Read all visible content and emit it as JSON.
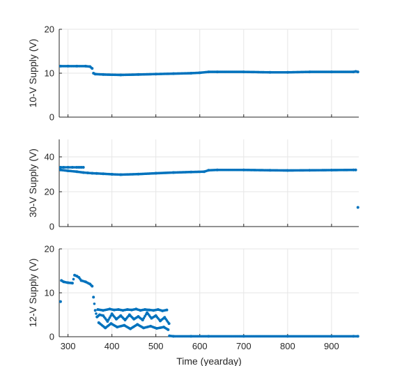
{
  "chart_data": [
    {
      "type": "scatter",
      "title": "",
      "xlabel": "",
      "ylabel": "10-V Supply (V)",
      "xlim": [
        280,
        962
      ],
      "ylim": [
        0,
        20
      ],
      "yticks": [
        0,
        10,
        20
      ],
      "xticks": [
        300,
        400,
        500,
        600,
        700,
        800,
        900
      ],
      "xtick_labels_shown": false,
      "grid": true,
      "marker_color": "#0072BD",
      "series": [
        {
          "x": [
            283,
            300,
            320,
            340,
            350,
            355,
            358,
            362,
            380,
            420,
            460,
            500,
            540,
            580,
            600,
            620,
            640,
            700,
            760,
            800,
            850,
            900,
            950,
            955,
            960
          ],
          "y": [
            11.6,
            11.6,
            11.6,
            11.6,
            11.5,
            11.1,
            10.0,
            9.8,
            9.7,
            9.6,
            9.7,
            9.8,
            9.9,
            10.0,
            10.1,
            10.3,
            10.3,
            10.3,
            10.2,
            10.2,
            10.3,
            10.3,
            10.3,
            10.4,
            10.3
          ]
        }
      ]
    },
    {
      "type": "scatter",
      "title": "",
      "xlabel": "",
      "ylabel": "30-V Supply (V)",
      "xlim": [
        280,
        962
      ],
      "ylim": [
        0,
        50
      ],
      "yticks": [
        0,
        20,
        40
      ],
      "xticks": [
        300,
        400,
        500,
        600,
        700,
        800,
        900
      ],
      "xtick_labels_shown": false,
      "grid": true,
      "marker_color": "#0072BD",
      "series": [
        {
          "x": [
            283,
            300,
            320,
            335,
            345,
            355,
            365,
            380,
            400,
            420,
            460,
            500,
            540,
            580,
            610,
            620,
            640,
            700,
            760,
            800,
            850,
            900,
            950,
            955
          ],
          "y": [
            32.5,
            32.0,
            31.5,
            31.0,
            30.8,
            30.6,
            30.5,
            30.3,
            30.0,
            29.8,
            30.1,
            30.6,
            31.0,
            31.3,
            31.5,
            32.3,
            32.5,
            32.5,
            32.3,
            32.2,
            32.3,
            32.4,
            32.5,
            32.5
          ]
        },
        {
          "x": [
            283,
            290,
            300,
            310,
            320,
            325,
            330,
            335
          ],
          "y": [
            34.0,
            34.0,
            34.0,
            34.0,
            34.0,
            34.0,
            34.0,
            34.0
          ]
        },
        {
          "x": [
            960
          ],
          "y": [
            11
          ]
        }
      ]
    },
    {
      "type": "scatter",
      "title": "",
      "xlabel": "Time (yearday)",
      "ylabel": "12-V Supply (V)",
      "xlim": [
        280,
        962
      ],
      "ylim": [
        0,
        20
      ],
      "yticks": [
        0,
        10,
        20
      ],
      "xticks": [
        300,
        400,
        500,
        600,
        700,
        800,
        900
      ],
      "xtick_labels": [
        "300",
        "400",
        "500",
        "600",
        "700",
        "800",
        "900"
      ],
      "grid": true,
      "marker_color": "#0072BD",
      "series": [
        {
          "x": [
            283,
            285,
            290,
            300,
            310,
            315,
            320,
            325,
            330,
            340,
            350,
            355,
            358,
            362,
            366,
            372,
            380,
            390,
            400,
            410,
            420,
            430,
            440,
            450,
            460,
            470,
            480,
            490,
            500,
            510,
            520,
            530,
            531,
            540,
            580,
            620,
            700,
            800,
            900,
            950,
            960
          ],
          "y": [
            8.0,
            12.8,
            12.5,
            12.3,
            12.2,
            14.0,
            13.8,
            13.5,
            12.8,
            12.5,
            12.0,
            11.5,
            9.0,
            6.0,
            4.5,
            5.0,
            4.8,
            3.5,
            5.2,
            4.0,
            4.8,
            3.8,
            5.0,
            4.0,
            4.6,
            3.8,
            5.5,
            4.2,
            4.8,
            3.6,
            4.4,
            3.0,
            0.2,
            0.1,
            0.1,
            0.1,
            0.1,
            0.1,
            0.1,
            0.1,
            0.1
          ]
        },
        {
          "x": [
            368,
            380,
            395,
            405,
            415,
            425,
            435,
            445,
            455,
            465,
            475,
            485,
            495,
            505,
            515,
            525
          ],
          "y": [
            6.2,
            6.0,
            6.3,
            6.1,
            6.2,
            6.0,
            6.2,
            6.1,
            6.3,
            6.0,
            6.2,
            6.1,
            6.0,
            6.2,
            5.9,
            6.1
          ]
        },
        {
          "x": [
            370,
            385,
            398,
            412,
            428,
            442,
            458,
            472,
            488,
            502,
            518,
            528
          ],
          "y": [
            3.2,
            2.0,
            3.0,
            2.2,
            2.6,
            1.8,
            2.8,
            2.0,
            2.4,
            1.9,
            2.2,
            1.6
          ]
        }
      ]
    }
  ]
}
